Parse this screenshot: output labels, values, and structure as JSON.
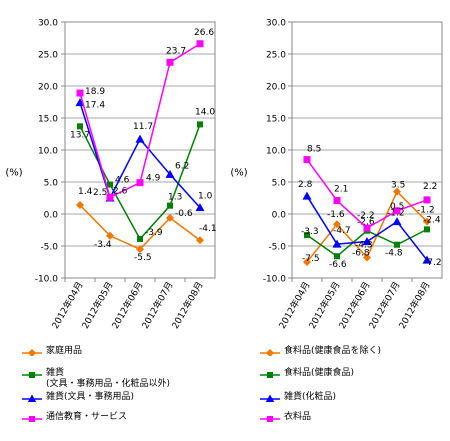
{
  "chart_data": [
    {
      "type": "line",
      "ylabel": "(%)",
      "ylim": [
        -10,
        30
      ],
      "yticks": [
        "30.0",
        "25.0",
        "20.0",
        "15.0",
        "10.0",
        "5.0",
        "0.0",
        "-5.0",
        "-10.0"
      ],
      "categories": [
        "2012年04月",
        "2012年05月",
        "2012年06月",
        "2012年07月",
        "2012年08月"
      ],
      "series": [
        {
          "name": "家庭用品",
          "color": "#F07800",
          "marker": "diamond",
          "values": [
            1.4,
            -3.4,
            -5.5,
            -0.6,
            -4.1
          ],
          "labels": [
            "1.4",
            "-3.4",
            "-5.5",
            "-0.6",
            "-4.1"
          ]
        },
        {
          "name": "雑貨\n(文具・事務用品・化粧品以外)",
          "color": "#008000",
          "marker": "square",
          "values": [
            13.7,
            4.6,
            -3.9,
            1.3,
            14.0
          ],
          "labels": [
            "13.7",
            "4.6",
            "-3.9",
            "1.3",
            "14.0"
          ]
        },
        {
          "name": "雑貨(文具・事務用品)",
          "color": "#0000FF",
          "marker": "triangle",
          "values": [
            17.4,
            2.5,
            11.7,
            6.2,
            1.0
          ],
          "labels": [
            "17.4",
            "2.5",
            "11.7",
            "6.2",
            "1.0"
          ]
        },
        {
          "name": "通信教育・サービス",
          "color": "#FF00FF",
          "marker": "square",
          "values": [
            18.9,
            2.6,
            4.9,
            23.7,
            26.6
          ],
          "labels": [
            "18.9",
            "2.6",
            "4.9",
            "23.7",
            "26.6"
          ]
        }
      ]
    },
    {
      "type": "line",
      "ylabel": "(%)",
      "ylim": [
        -10,
        30
      ],
      "yticks": [
        "30.0",
        "25.0",
        "20.0",
        "15.0",
        "10.0",
        "5.0",
        "0.0",
        "-5.0",
        "-10.0"
      ],
      "categories": [
        "2012年04月",
        "2012年05月",
        "2012年06月",
        "2012年07月",
        "2012年08月"
      ],
      "series": [
        {
          "name": "食料品(健康食品を除く)",
          "color": "#F07800",
          "marker": "diamond",
          "values": [
            -7.5,
            -1.6,
            -6.8,
            3.5,
            -1.2
          ],
          "labels": [
            "-7.5",
            "-1.6",
            "-6.8",
            "3.5",
            "-1.2"
          ]
        },
        {
          "name": "食料品(健康食品)",
          "color": "#008000",
          "marker": "square",
          "values": [
            -3.3,
            -6.6,
            -2.6,
            -4.8,
            -2.4
          ],
          "labels": [
            "-3.3",
            "-6.6",
            "-2.6",
            "-4.8",
            "-2.4"
          ]
        },
        {
          "name": "雑貨(化粧品)",
          "color": "#0000FF",
          "marker": "triangle",
          "values": [
            2.8,
            -4.7,
            -4.3,
            -1.2,
            -7.2
          ],
          "labels": [
            "2.8",
            "-4.7",
            "-4.3",
            "-1.2",
            "-7.2"
          ]
        },
        {
          "name": "衣料品",
          "color": "#FF00FF",
          "marker": "square",
          "values": [
            8.5,
            2.1,
            -2.2,
            0.5,
            2.2
          ],
          "labels": [
            "8.5",
            "2.1",
            "-2.2",
            "0.5",
            "2.2"
          ]
        }
      ]
    }
  ]
}
